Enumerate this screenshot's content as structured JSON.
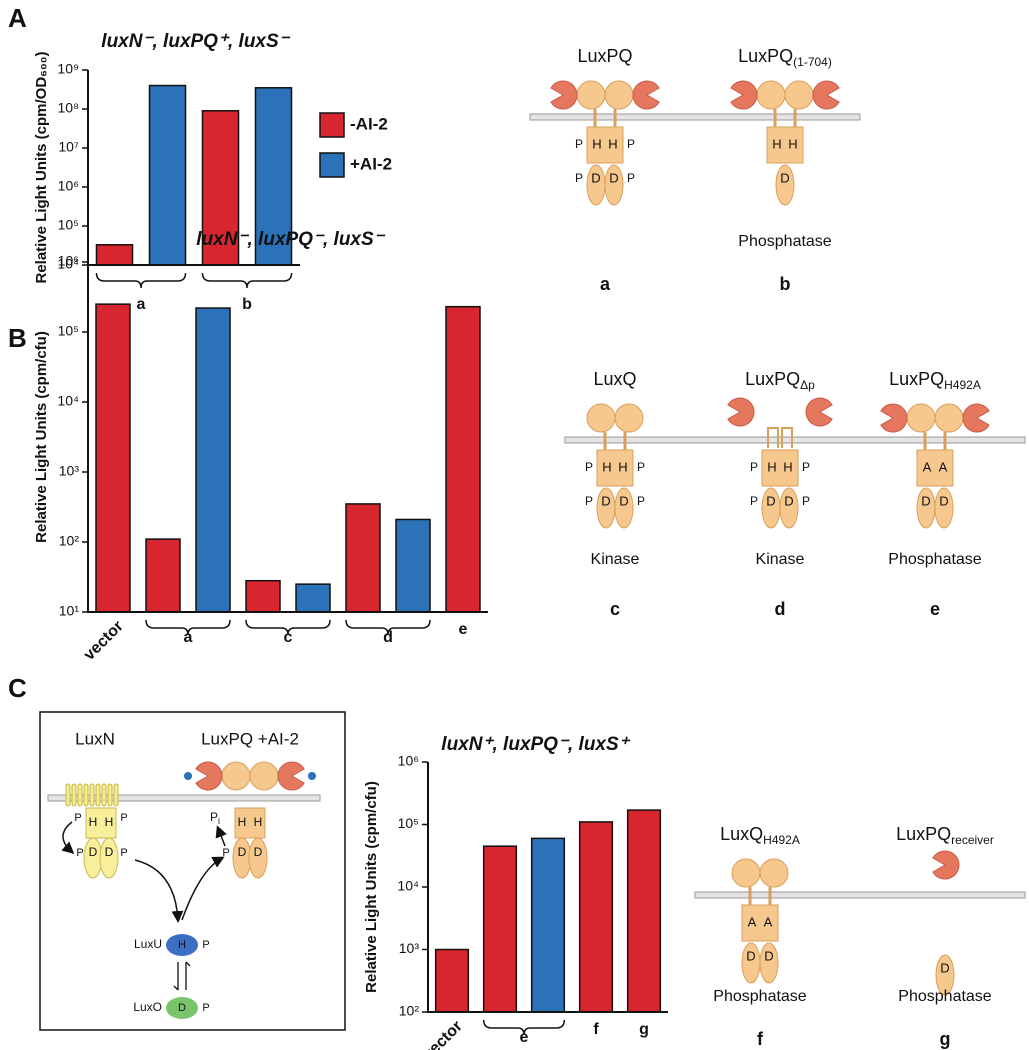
{
  "panel_labels": [
    "A",
    "B",
    "C"
  ],
  "chart_data": [
    {
      "type": "bar",
      "title": "luxN⁻, luxPQ⁺, luxS⁻",
      "y_label": "Relative Light Units (cpm/OD₆₀₀)",
      "categories": [
        "a",
        "b"
      ],
      "series": [
        {
          "name": "-AI-2",
          "color": "#d7262e",
          "values": [
            33000,
            90000000
          ]
        },
        {
          "name": "+AI-2",
          "color": "#2b72b8",
          "values": [
            400000000,
            350000000
          ]
        }
      ],
      "log_scale": true,
      "ylim": [
        10000,
        1000000000
      ],
      "yticks": [
        {
          "value": 10000,
          "label": "10⁴"
        },
        {
          "value": 100000,
          "label": "10⁵"
        },
        {
          "value": 1000000,
          "label": "10⁶"
        },
        {
          "value": 10000000,
          "label": "10⁷"
        },
        {
          "value": 100000000,
          "label": "10⁸"
        },
        {
          "value": 1000000000,
          "label": "10⁹"
        }
      ],
      "legend": "right"
    },
    {
      "type": "bar",
      "title": "luxN⁻, luxPQ⁻, luxS⁻",
      "y_label": "Relative Light Units (cpm/cfu)",
      "categories": [
        "vector",
        "a",
        "c",
        "d",
        "e"
      ],
      "series": [
        {
          "color": "#d7262e",
          "values": [
            250000,
            110,
            28,
            350,
            230000
          ]
        },
        {
          "color": "#2b72b8",
          "values": [
            null,
            220000,
            25,
            210,
            null
          ]
        }
      ],
      "log_scale": true,
      "ylim": [
        10,
        1000000
      ],
      "yticks": [
        {
          "value": 10,
          "label": "10¹"
        },
        {
          "value": 100,
          "label": "10²"
        },
        {
          "value": 1000,
          "label": "10³"
        },
        {
          "value": 10000,
          "label": "10⁴"
        },
        {
          "value": 100000,
          "label": "10⁵"
        },
        {
          "value": 1000000,
          "label": "10⁶"
        }
      ]
    },
    {
      "type": "bar",
      "title": "luxN⁺, luxPQ⁻, luxS⁺",
      "y_label": "Relative Light Units (cpm/cfu)",
      "categories": [
        "vector",
        "e",
        "f",
        "g"
      ],
      "series": [
        {
          "color": "#d7262e",
          "values": [
            1000,
            45000,
            110000,
            170000
          ]
        },
        {
          "color": "#2b72b8",
          "values": [
            null,
            60000,
            null,
            null
          ]
        }
      ],
      "log_scale": true,
      "ylim": [
        100,
        1000000
      ],
      "yticks": [
        {
          "value": 100,
          "label": "10²"
        },
        {
          "value": 1000,
          "label": "10³"
        },
        {
          "value": 10000,
          "label": "10⁴"
        },
        {
          "value": 100000,
          "label": "10⁵"
        },
        {
          "value": 1000000,
          "label": "10⁶"
        }
      ]
    }
  ],
  "constructs": [
    {
      "name": "LuxPQ",
      "periplasm": "full",
      "hk": [
        "H",
        "H"
      ],
      "rr": [
        "D",
        "D"
      ],
      "phospho": "P",
      "id": "a"
    },
    {
      "name": "LuxPQ",
      "sub": "(1-704)",
      "periplasm": "full",
      "hk": [
        "H",
        "H"
      ],
      "rr": [
        "D"
      ],
      "role": "Phosphatase",
      "id": "b"
    },
    {
      "name": "LuxQ",
      "periplasm": "no-luxp",
      "hk": [
        "H",
        "H"
      ],
      "rr": [
        "D",
        "D"
      ],
      "phospho": "P",
      "role": "Kinase",
      "id": "c"
    },
    {
      "name": "LuxPQ",
      "sub": "Δp",
      "periplasm": "luxp-only",
      "hk": [
        "H",
        "H"
      ],
      "rr": [
        "D",
        "D"
      ],
      "phospho": "P",
      "role": "Kinase",
      "id": "d"
    },
    {
      "name": "LuxPQ",
      "sub": "H492A",
      "periplasm": "full",
      "hk": [
        "A",
        "A"
      ],
      "rr": [
        "D",
        "D"
      ],
      "role": "Phosphatase",
      "id": "e"
    },
    {
      "name": "LuxQ",
      "sub": "H492A",
      "periplasm": "no-luxp",
      "hk": [
        "A",
        "A"
      ],
      "rr": [
        "D",
        "D"
      ],
      "role": "Phosphatase",
      "id": "f"
    },
    {
      "name": "LuxPQ",
      "sub": "receiver",
      "periplasm": "luxp",
      "rr": [
        "D"
      ],
      "role": "Phosphatase",
      "id": "g"
    }
  ],
  "pathway": {
    "sensor1": "LuxN",
    "sensor2": "LuxPQ +AI-2",
    "h": "H",
    "d": "D",
    "p": "P",
    "pi": "P",
    "pi_sub": "i",
    "luxu": "LuxU",
    "luxo": "LuxO"
  }
}
